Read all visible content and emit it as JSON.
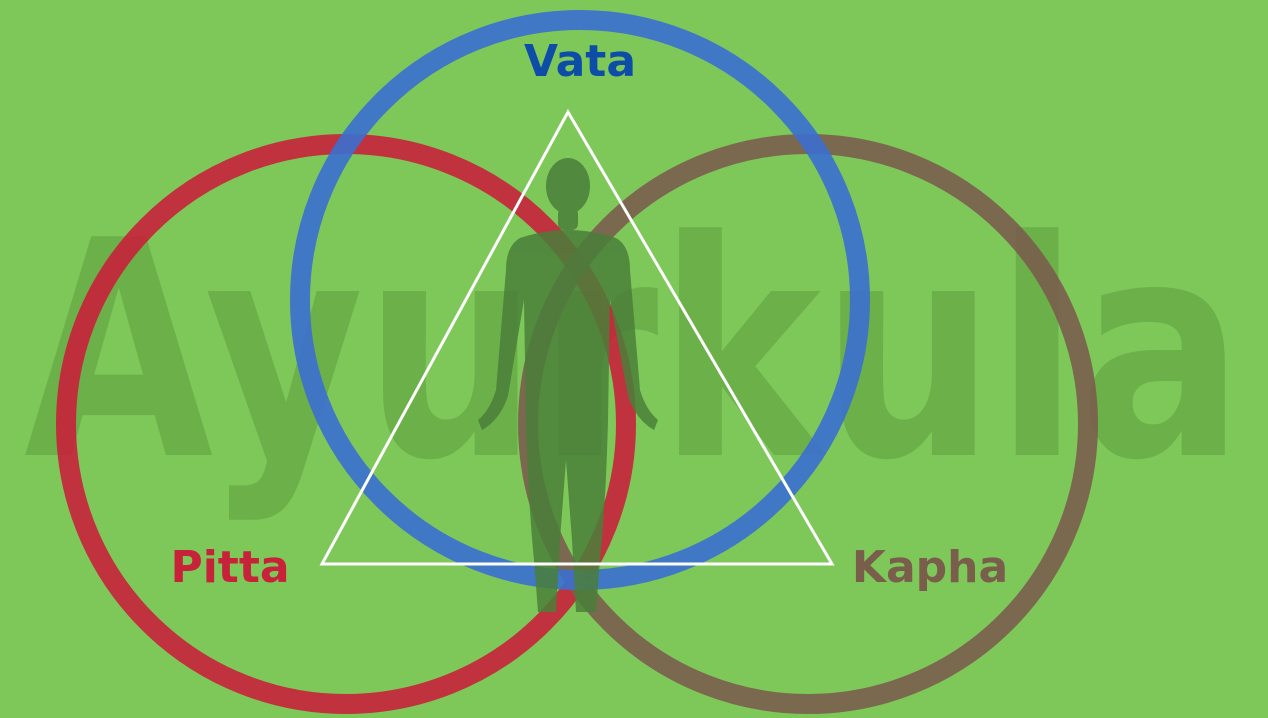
{
  "background_color": "#7ec85a",
  "watermark": {
    "text": "Ayurkula",
    "color": "#5e9e3d"
  },
  "doshas": [
    {
      "id": "vata",
      "label": "Vata",
      "ring_color": "#3b6fd0",
      "label_color": "#0d4da8"
    },
    {
      "id": "pitta",
      "label": "Pitta",
      "ring_color": "#c8213a",
      "label_color": "#c8213a"
    },
    {
      "id": "kapha",
      "label": "Kapha",
      "ring_color": "#7a5e4c",
      "label_color": "#7a5e4c"
    }
  ],
  "triangle_color": "#ffffff",
  "figure": {
    "icon": "human-body-silhouette-icon",
    "color": "#4a7f3a"
  }
}
